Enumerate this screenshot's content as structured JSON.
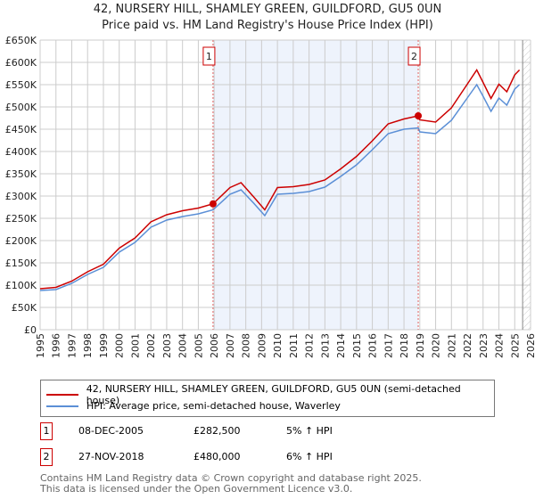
{
  "chart_data": {
    "type": "line",
    "title": "42, NURSERY HILL, SHAMLEY GREEN, GUILDFORD, GU5 0UN",
    "subtitle": "Price paid vs. HM Land Registry's House Price Index (HPI)",
    "xlim": [
      1995,
      2026
    ],
    "ylim": [
      0,
      650000
    ],
    "yticks": [
      {
        "v": 0,
        "label": "£0"
      },
      {
        "v": 50000,
        "label": "£50K"
      },
      {
        "v": 100000,
        "label": "£100K"
      },
      {
        "v": 150000,
        "label": "£150K"
      },
      {
        "v": 200000,
        "label": "£200K"
      },
      {
        "v": 250000,
        "label": "£250K"
      },
      {
        "v": 300000,
        "label": "£300K"
      },
      {
        "v": 350000,
        "label": "£350K"
      },
      {
        "v": 400000,
        "label": "£400K"
      },
      {
        "v": 450000,
        "label": "£450K"
      },
      {
        "v": 500000,
        "label": "£500K"
      },
      {
        "v": 550000,
        "label": "£550K"
      },
      {
        "v": 600000,
        "label": "£600K"
      },
      {
        "v": 650000,
        "label": "£650K"
      }
    ],
    "xticks": [
      "1995",
      "1996",
      "1997",
      "1998",
      "1999",
      "2000",
      "2001",
      "2002",
      "2003",
      "2004",
      "2005",
      "2006",
      "2007",
      "2008",
      "2009",
      "2010",
      "2011",
      "2012",
      "2013",
      "2014",
      "2015",
      "2016",
      "2017",
      "2018",
      "2019",
      "2020",
      "2021",
      "2022",
      "2023",
      "2024",
      "2025",
      "2026"
    ],
    "grid": true,
    "series": [
      {
        "name": "42, NURSERY HILL, SHAMLEY GREEN, GUILDFORD, GU5 0UN (semi-detached house)",
        "color": "#cc0000",
        "x": [
          1995,
          1996,
          1997,
          1998,
          1999,
          2000,
          2001,
          2002,
          2003,
          2004,
          2005,
          2005.93,
          2007,
          2007.7,
          2008.5,
          2009.2,
          2010,
          2011,
          2012,
          2013,
          2014,
          2015,
          2016,
          2017,
          2018,
          2018.9,
          2019,
          2020,
          2021,
          2022,
          2022.6,
          2023,
          2023.5,
          2024,
          2024.5,
          2025,
          2025.3
        ],
        "y": [
          92000,
          95000,
          109000,
          130000,
          147000,
          183000,
          206000,
          242000,
          258000,
          267000,
          273000,
          282500,
          319000,
          330000,
          298000,
          269000,
          319000,
          321000,
          326000,
          336000,
          361000,
          389000,
          424000,
          462000,
          473000,
          480000,
          471000,
          466000,
          498000,
          551000,
          583000,
          555000,
          519000,
          551000,
          534000,
          572000,
          583000
        ]
      },
      {
        "name": "HPI: Average price, semi-detached house, Waverley",
        "color": "#5b8fd6",
        "x": [
          1995,
          1996,
          1997,
          1998,
          1999,
          2000,
          2001,
          2002,
          2003,
          2004,
          2005,
          2005.93,
          2007,
          2007.7,
          2008.5,
          2009.2,
          2010,
          2011,
          2012,
          2013,
          2014,
          2015,
          2016,
          2017,
          2018,
          2018.9,
          2019,
          2020,
          2021,
          2022,
          2022.6,
          2023,
          2023.5,
          2024,
          2024.5,
          2025,
          2025.3
        ],
        "y": [
          88000,
          90000,
          104000,
          124000,
          140000,
          174000,
          196000,
          230000,
          246000,
          254000,
          260000,
          269000,
          304000,
          314000,
          284000,
          256000,
          304000,
          306000,
          310000,
          320000,
          344000,
          370000,
          404000,
          440000,
          450000,
          453000,
          444000,
          440000,
          470000,
          520000,
          550000,
          524000,
          490000,
          520000,
          504000,
          540000,
          550000
        ]
      }
    ],
    "sales": [
      {
        "id": "1",
        "x": 2005.93,
        "date": "08-DEC-2005",
        "price": 282500,
        "price_label": "£282,500",
        "hpi": "5% ↑ HPI"
      },
      {
        "id": "2",
        "x": 2018.9,
        "date": "27-NOV-2018",
        "price": 480000,
        "price_label": "£480,000",
        "hpi": "6% ↑ HPI"
      }
    ],
    "forecast_from": 2025.5
  },
  "footer": [
    "Contains HM Land Registry data © Crown copyright and database right 2025.",
    "This data is licensed under the Open Government Licence v3.0."
  ]
}
